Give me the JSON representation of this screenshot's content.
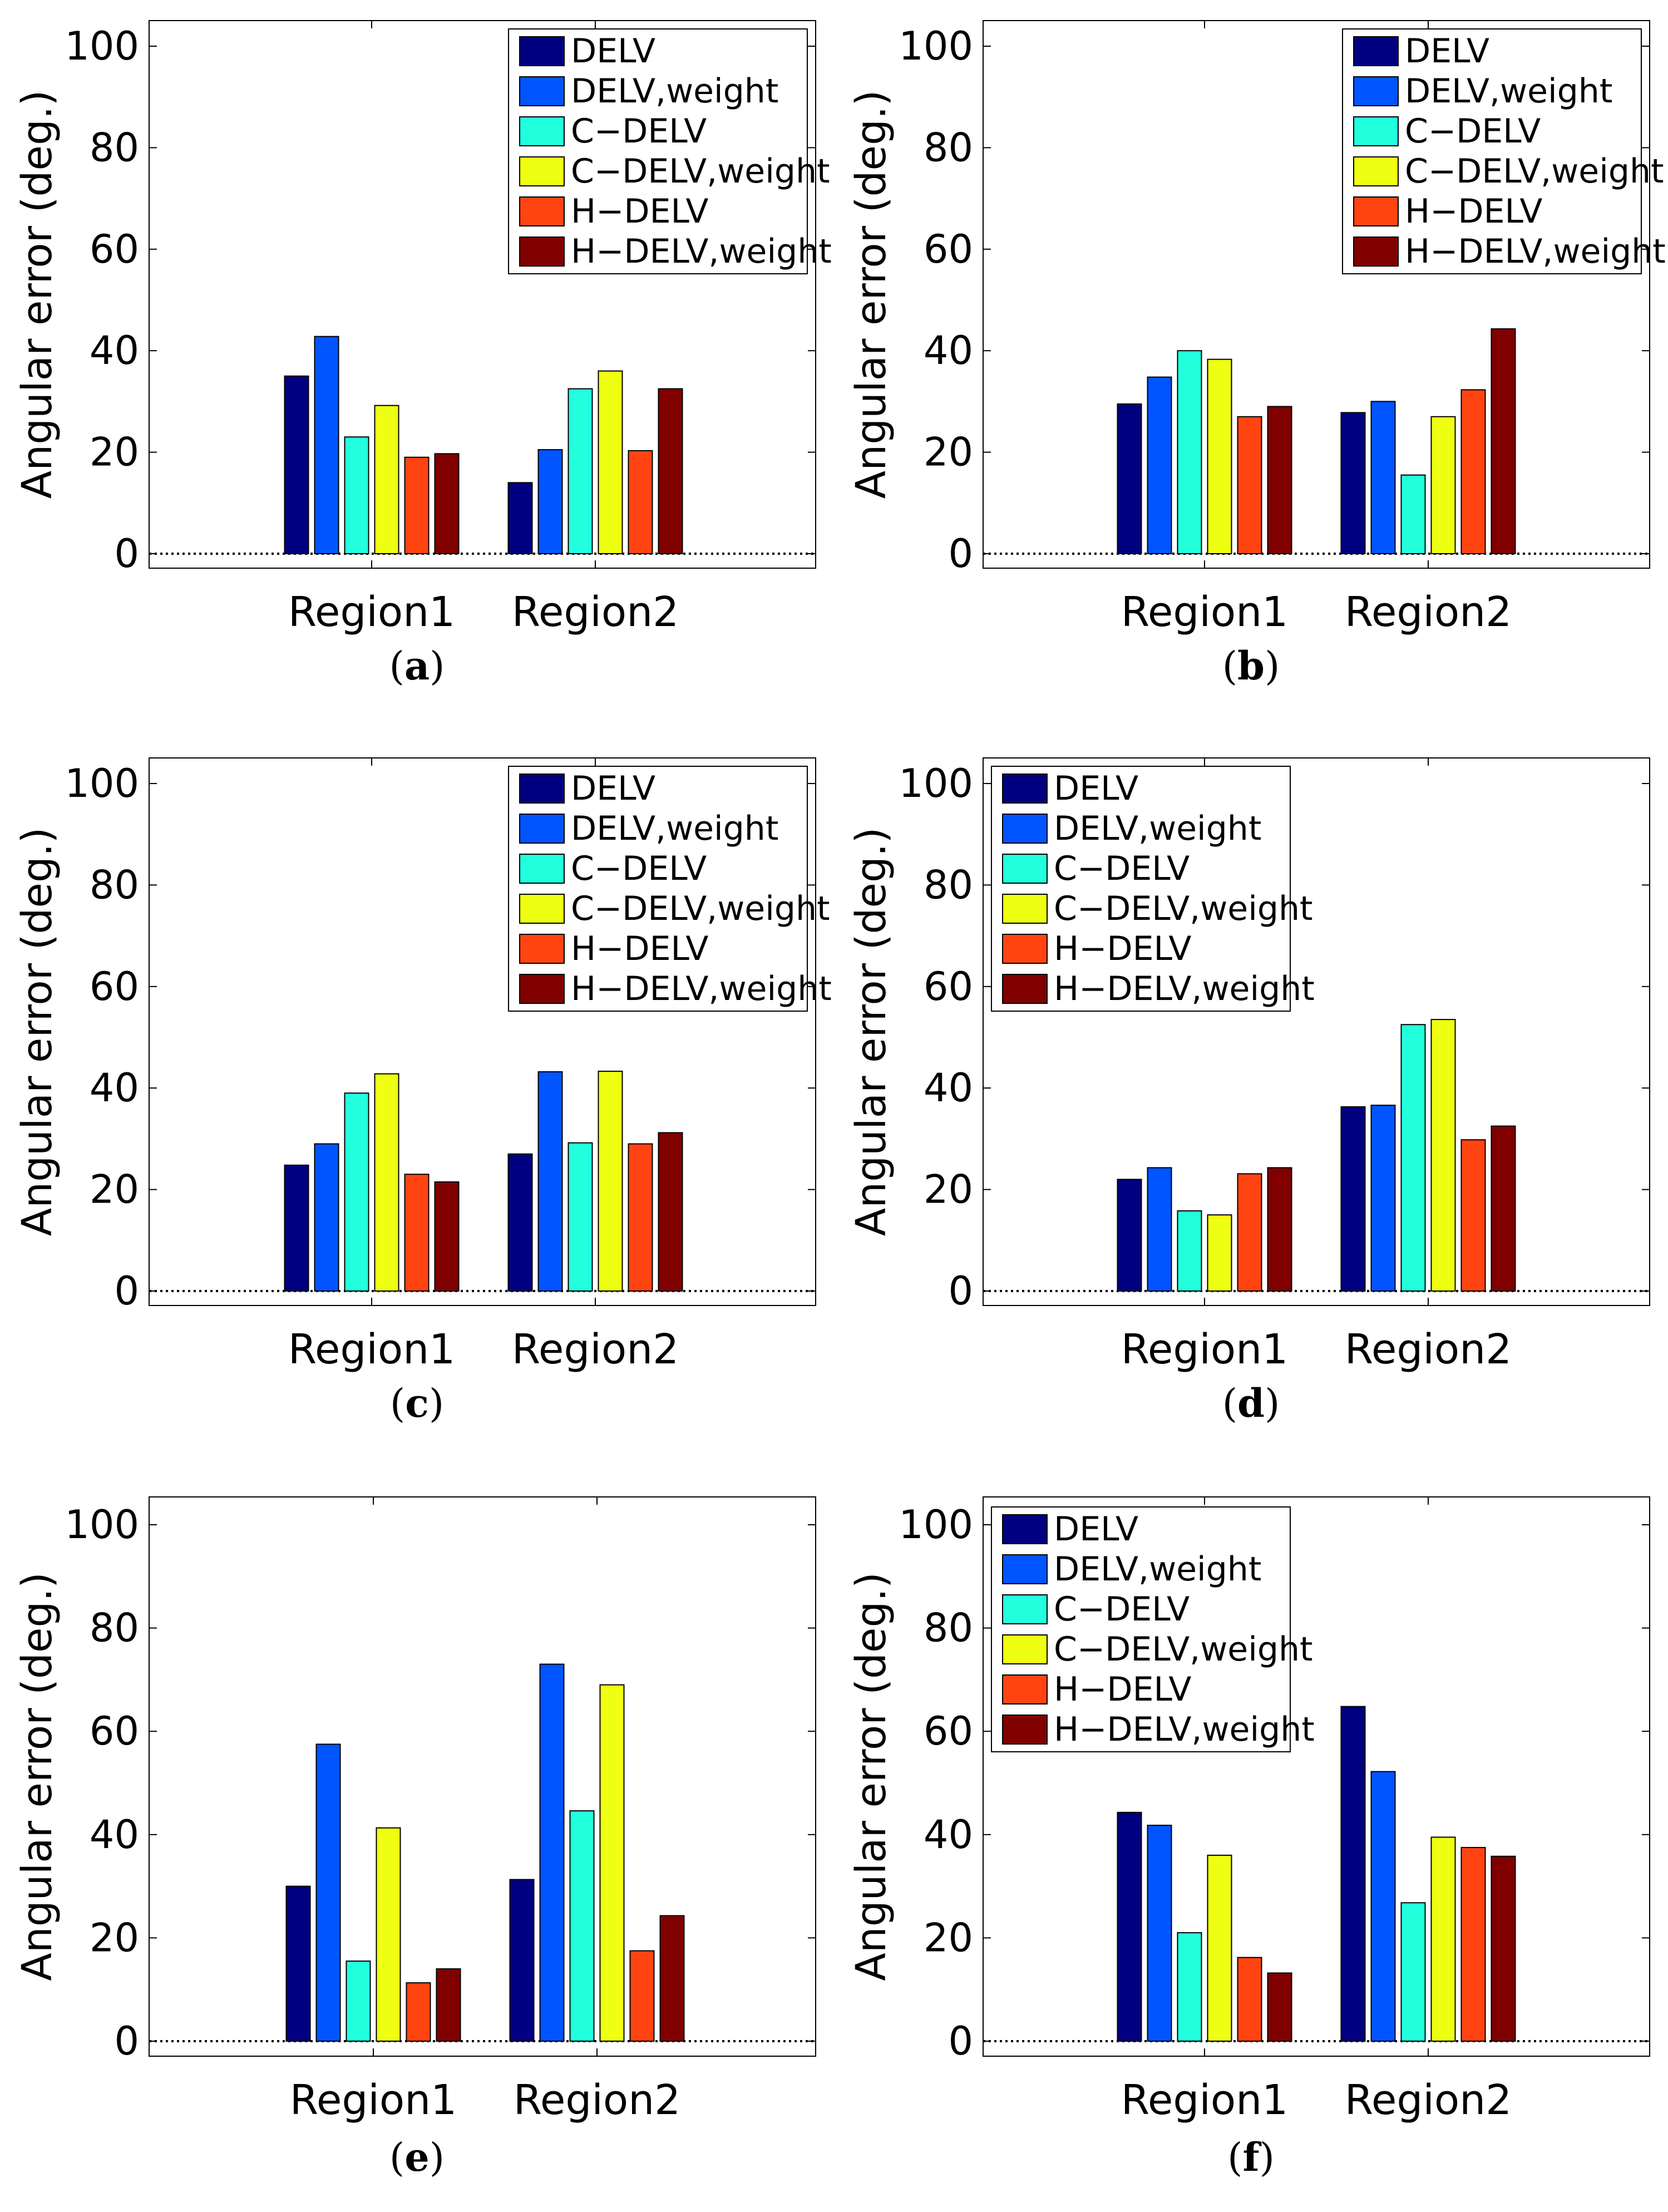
{
  "colors": [
    "#000080",
    "#0055ff",
    "#22ffdd",
    "#eeff11",
    "#ff4411",
    "#800000"
  ],
  "chart_data": [
    {
      "type": "bar",
      "label": "a",
      "categories": [
        "Region1",
        "Region2"
      ],
      "ylabel": "Angular error (deg.)",
      "ylim": [
        0,
        105
      ],
      "yticks": [
        0,
        20,
        40,
        60,
        80,
        100
      ],
      "legend": "top-right",
      "series": [
        {
          "name": "DELV",
          "values": [
            35,
            14
          ]
        },
        {
          "name": "DELV,weight",
          "values": [
            42.8,
            20.5
          ]
        },
        {
          "name": "C−DELV",
          "values": [
            23,
            32.5
          ]
        },
        {
          "name": "C−DELV,weight",
          "values": [
            29.2,
            36
          ]
        },
        {
          "name": "H−DELV",
          "values": [
            19,
            20.3
          ]
        },
        {
          "name": "H−DELV,weight",
          "values": [
            19.7,
            32.5
          ]
        }
      ]
    },
    {
      "type": "bar",
      "label": "b",
      "categories": [
        "Region1",
        "Region2"
      ],
      "ylabel": "Angular error (deg.)",
      "ylim": [
        0,
        105
      ],
      "yticks": [
        0,
        20,
        40,
        60,
        80,
        100
      ],
      "legend": "top-right",
      "series": [
        {
          "name": "DELV",
          "values": [
            29.5,
            27.8
          ]
        },
        {
          "name": "DELV,weight",
          "values": [
            34.8,
            30
          ]
        },
        {
          "name": "C−DELV",
          "values": [
            40,
            15.5
          ]
        },
        {
          "name": "C−DELV,weight",
          "values": [
            38.3,
            27
          ]
        },
        {
          "name": "H−DELV",
          "values": [
            27,
            32.3
          ]
        },
        {
          "name": "H−DELV,weight",
          "values": [
            29,
            44.3
          ]
        }
      ]
    },
    {
      "type": "bar",
      "label": "c",
      "categories": [
        "Region1",
        "Region2"
      ],
      "ylabel": "Angular error (deg.)",
      "ylim": [
        0,
        105
      ],
      "yticks": [
        0,
        20,
        40,
        60,
        80,
        100
      ],
      "legend": "top-right",
      "series": [
        {
          "name": "DELV",
          "values": [
            24.8,
            27
          ]
        },
        {
          "name": "DELV,weight",
          "values": [
            29,
            43.2
          ]
        },
        {
          "name": "C−DELV",
          "values": [
            39,
            29.2
          ]
        },
        {
          "name": "C−DELV,weight",
          "values": [
            42.8,
            43.3
          ]
        },
        {
          "name": "H−DELV",
          "values": [
            23,
            29
          ]
        },
        {
          "name": "H−DELV,weight",
          "values": [
            21.5,
            31.2
          ]
        }
      ]
    },
    {
      "type": "bar",
      "label": "d",
      "categories": [
        "Region1",
        "Region2"
      ],
      "ylabel": "Angular error (deg.)",
      "ylim": [
        0,
        105
      ],
      "yticks": [
        0,
        20,
        40,
        60,
        80,
        100
      ],
      "legend": "top-left",
      "series": [
        {
          "name": "DELV",
          "values": [
            22,
            36.3
          ]
        },
        {
          "name": "DELV,weight",
          "values": [
            24.3,
            36.6
          ]
        },
        {
          "name": "C−DELV",
          "values": [
            15.8,
            52.5
          ]
        },
        {
          "name": "C−DELV,weight",
          "values": [
            15,
            53.5
          ]
        },
        {
          "name": "H−DELV",
          "values": [
            23.1,
            29.8
          ]
        },
        {
          "name": "H−DELV,weight",
          "values": [
            24.3,
            32.5
          ]
        }
      ]
    },
    {
      "type": "bar",
      "label": "e",
      "categories": [
        "Region1",
        "Region2"
      ],
      "ylabel": "Angular error (deg.)",
      "ylim": [
        0,
        105
      ],
      "yticks": [
        0,
        20,
        40,
        60,
        80,
        100
      ],
      "legend": "none",
      "series": [
        {
          "name": "DELV",
          "values": [
            30,
            31.3
          ]
        },
        {
          "name": "DELV,weight",
          "values": [
            57.5,
            73
          ]
        },
        {
          "name": "C−DELV",
          "values": [
            15.5,
            44.6
          ]
        },
        {
          "name": "C−DELV,weight",
          "values": [
            41.3,
            69
          ]
        },
        {
          "name": "H−DELV",
          "values": [
            11.3,
            17.5
          ]
        },
        {
          "name": "H−DELV,weight",
          "values": [
            14,
            24.3
          ]
        }
      ]
    },
    {
      "type": "bar",
      "label": "f",
      "categories": [
        "Region1",
        "Region2"
      ],
      "ylabel": "Angular error (deg.)",
      "ylim": [
        0,
        105
      ],
      "yticks": [
        0,
        20,
        40,
        60,
        80,
        100
      ],
      "legend": "top-left",
      "series": [
        {
          "name": "DELV",
          "values": [
            44.3,
            64.8
          ]
        },
        {
          "name": "DELV,weight",
          "values": [
            41.8,
            52.2
          ]
        },
        {
          "name": "C−DELV",
          "values": [
            21,
            26.8
          ]
        },
        {
          "name": "C−DELV,weight",
          "values": [
            36,
            39.5
          ]
        },
        {
          "name": "H−DELV",
          "values": [
            16.2,
            37.5
          ]
        },
        {
          "name": "H−DELV,weight",
          "values": [
            13.2,
            35.8
          ]
        }
      ]
    }
  ]
}
